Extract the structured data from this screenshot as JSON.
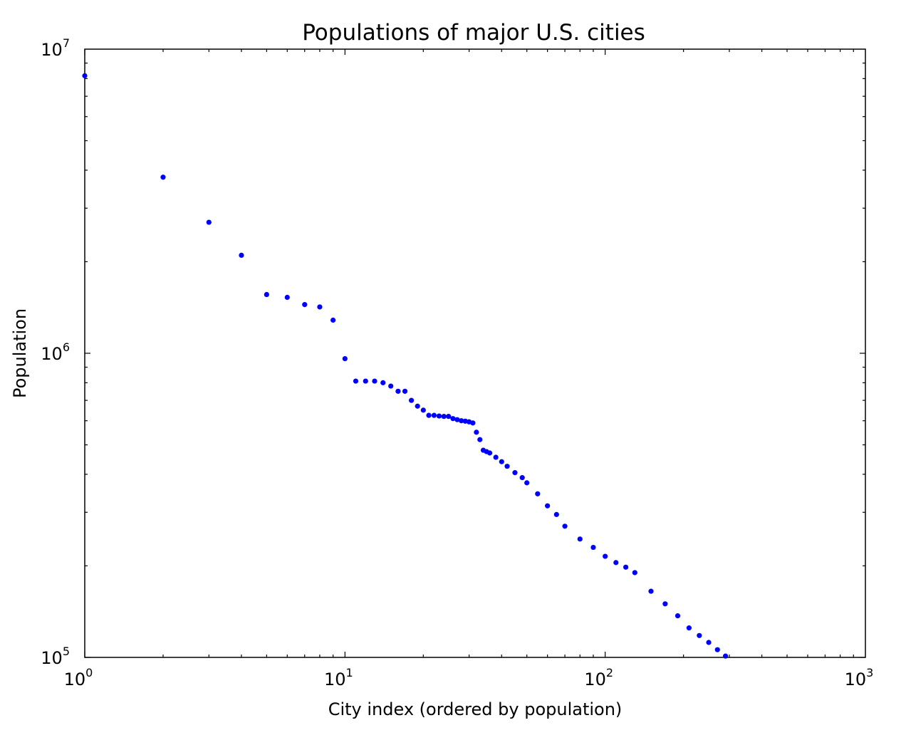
{
  "chart_data": {
    "type": "scatter",
    "title": "Populations of major U.S. cities",
    "xlabel": "City index (ordered by population)",
    "ylabel": "Population",
    "x_scale": "log",
    "y_scale": "log",
    "xlim": [
      1,
      1000
    ],
    "ylim": [
      100000,
      10000000
    ],
    "x_ticks": [
      {
        "base": "10",
        "exp": "0",
        "value": 1
      },
      {
        "base": "10",
        "exp": "1",
        "value": 10
      },
      {
        "base": "10",
        "exp": "2",
        "value": 100
      },
      {
        "base": "10",
        "exp": "3",
        "value": 1000
      }
    ],
    "y_ticks": [
      {
        "base": "10",
        "exp": "5",
        "value": 100000
      },
      {
        "base": "10",
        "exp": "6",
        "value": 1000000
      },
      {
        "base": "10",
        "exp": "7",
        "value": 10000000
      }
    ],
    "grid": false,
    "marker_color": "#0000ff",
    "series": [
      {
        "x": [
          1,
          2,
          3,
          4,
          5,
          6,
          7,
          8,
          9,
          10,
          11,
          12,
          13,
          14,
          15,
          16,
          17,
          18,
          19,
          20,
          21,
          22,
          23,
          24,
          25,
          26,
          27,
          28,
          29,
          30,
          31,
          32,
          33,
          34,
          35,
          36,
          38,
          40,
          42,
          45,
          48,
          50,
          55,
          60,
          65,
          70,
          80,
          90,
          100,
          110,
          120,
          130,
          150,
          170,
          190,
          210,
          230,
          250,
          270,
          290
        ],
        "y": [
          8175000,
          3793000,
          2696000,
          2100000,
          1560000,
          1527000,
          1446000,
          1420000,
          1285000,
          960000,
          810000,
          810000,
          810000,
          800000,
          780000,
          750000,
          750000,
          700000,
          670000,
          650000,
          625000,
          625000,
          622000,
          620000,
          620000,
          610000,
          605000,
          600000,
          598000,
          595000,
          590000,
          550000,
          520000,
          480000,
          475000,
          470000,
          455000,
          440000,
          425000,
          405000,
          390000,
          375000,
          345000,
          315000,
          295000,
          270000,
          245000,
          230000,
          215000,
          205000,
          198000,
          190000,
          165000,
          150000,
          137000,
          125000,
          118000,
          112000,
          106000,
          101000
        ]
      }
    ]
  }
}
